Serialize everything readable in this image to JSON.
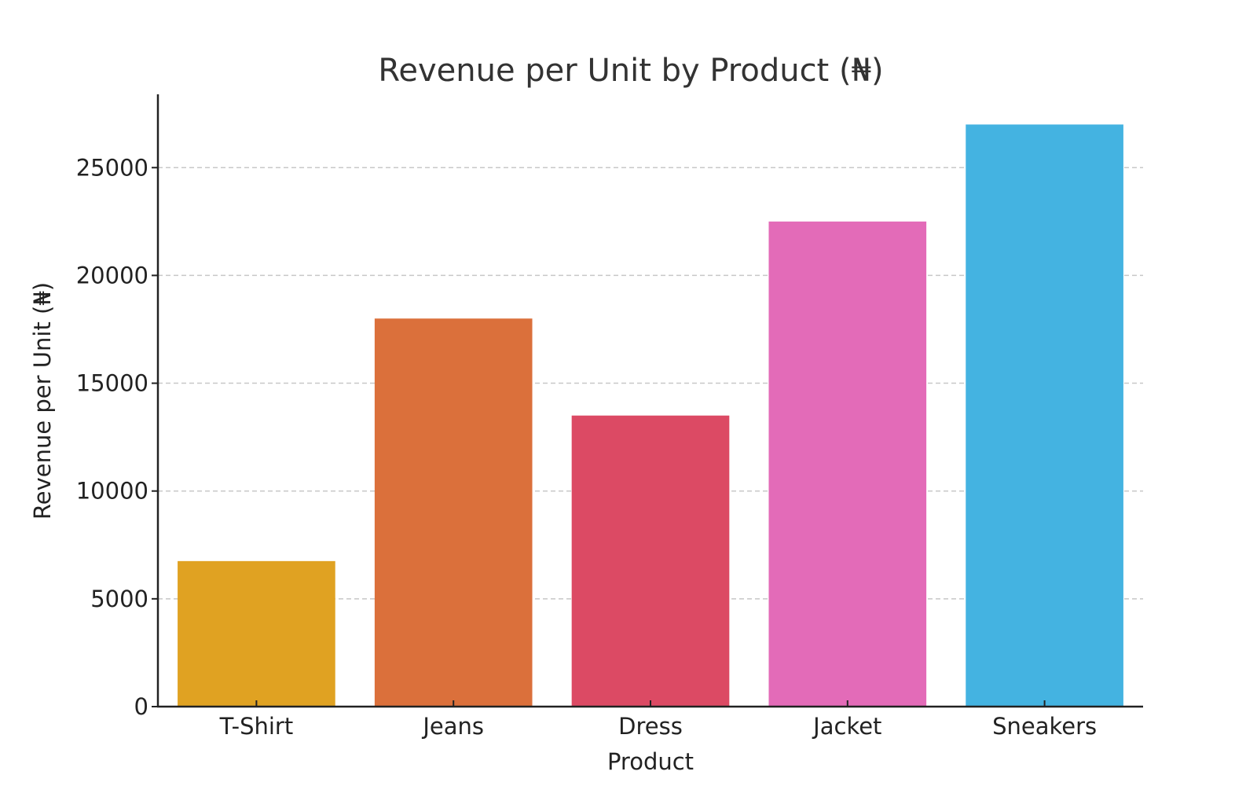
{
  "chart_data": {
    "type": "bar",
    "title": "Revenue per Unit by Product (₦)",
    "xlabel": "Product",
    "ylabel": "Revenue per Unit (₦)",
    "categories": [
      "T-Shirt",
      "Jeans",
      "Dress",
      "Jacket",
      "Sneakers"
    ],
    "values": [
      6750,
      18000,
      13500,
      22500,
      27000
    ],
    "colors": [
      "#E0A222",
      "#DB703B",
      "#DC4A64",
      "#E36BB8",
      "#44B3E1"
    ],
    "ylim": [
      0,
      28400
    ],
    "yticks": [
      0,
      5000,
      10000,
      15000,
      20000,
      25000
    ],
    "grid": true,
    "legend": "none"
  }
}
